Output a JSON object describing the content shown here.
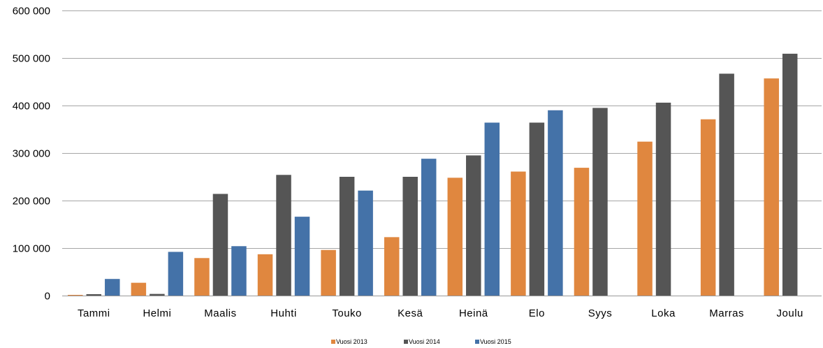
{
  "chart_data": {
    "type": "bar",
    "title": "",
    "xlabel": "",
    "ylabel": "",
    "ylim": [
      0,
      600000
    ],
    "yticks": [
      {
        "value": 0,
        "label": "0"
      },
      {
        "value": 100000,
        "label": "100 000"
      },
      {
        "value": 200000,
        "label": "200 000"
      },
      {
        "value": 300000,
        "label": "300 000"
      },
      {
        "value": 400000,
        "label": "400 000"
      },
      {
        "value": 500000,
        "label": "500 000"
      },
      {
        "value": 600000,
        "label": "600 000"
      }
    ],
    "grid": true,
    "legend_position": "bottom",
    "categories": [
      "Tammi",
      "Helmi",
      "Maalis",
      "Huhti",
      "Touko",
      "Kesä",
      "Heinä",
      "Elo",
      "Syys",
      "Loka",
      "Marras",
      "Joulu"
    ],
    "series": [
      {
        "name": "Vuosi 2013",
        "color": "#e0873f",
        "values": [
          1500,
          27000,
          79000,
          87000,
          96000,
          123000,
          248000,
          261000,
          269000,
          324000,
          371000,
          457000
        ]
      },
      {
        "name": "Vuosi 2014",
        "color": "#555555",
        "values": [
          3000,
          3500,
          214000,
          254000,
          250000,
          250000,
          295000,
          364000,
          395000,
          406000,
          467000,
          509000
        ]
      },
      {
        "name": "Vuosi 2015",
        "color": "#4472a8",
        "values": [
          35000,
          92000,
          104000,
          166000,
          221000,
          288000,
          364000,
          390000,
          null,
          null,
          null,
          null
        ]
      }
    ]
  }
}
